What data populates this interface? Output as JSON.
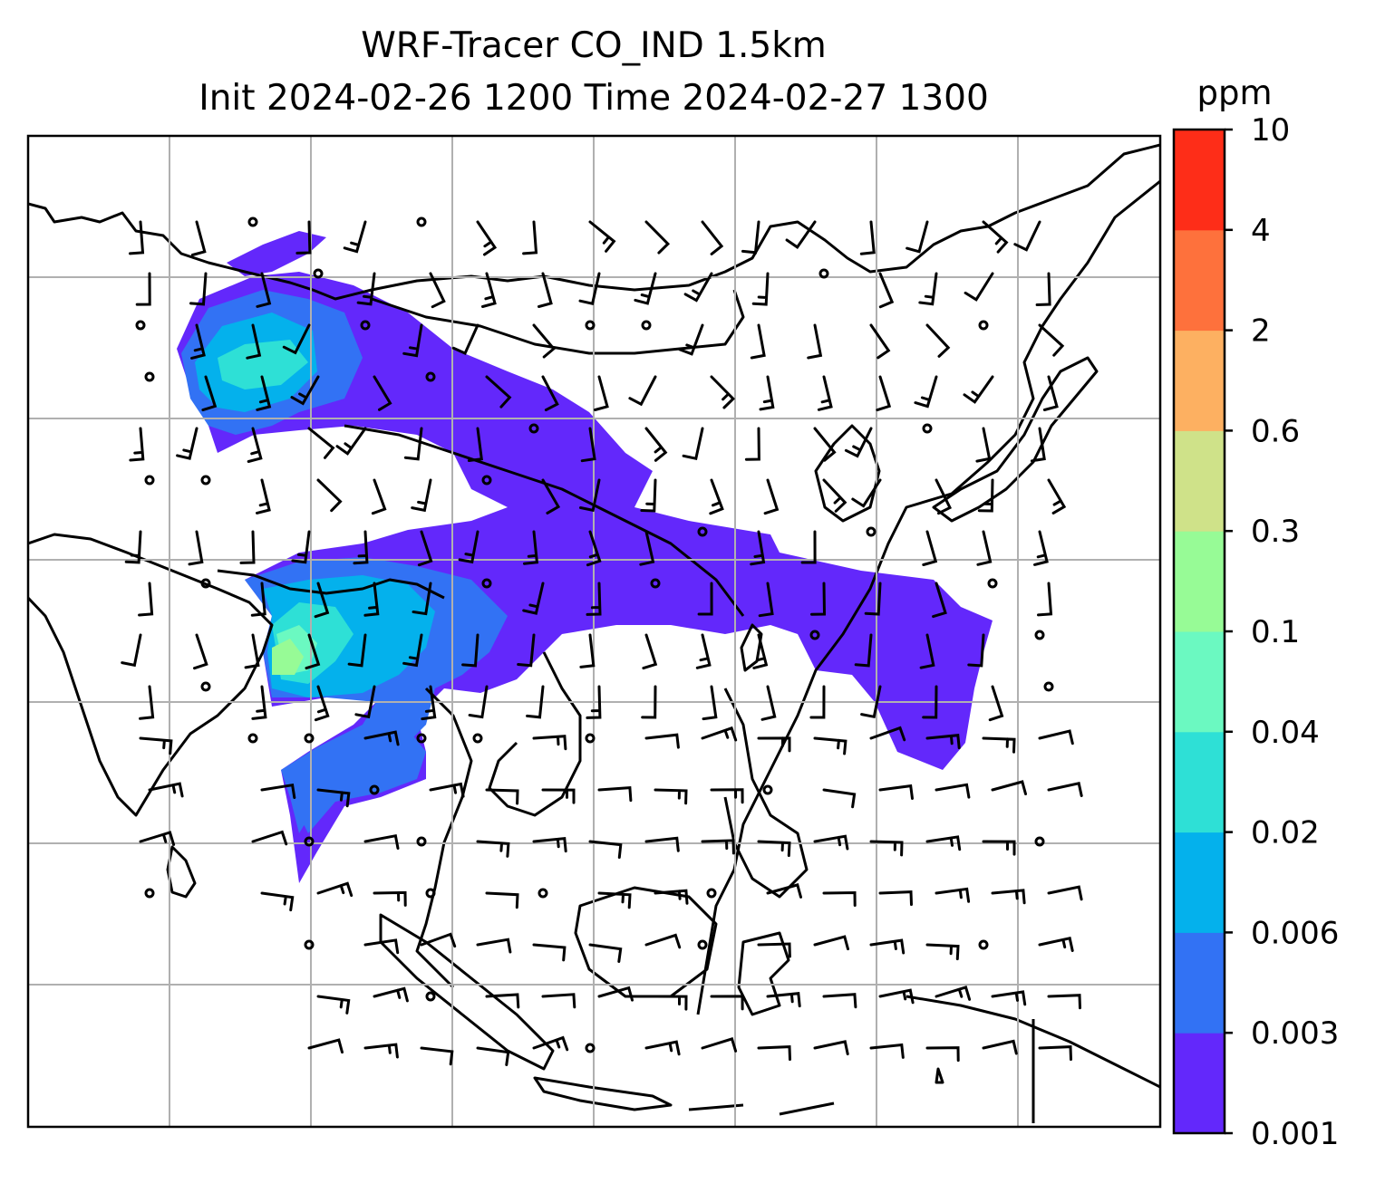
{
  "chart_data": {
    "type": "heatmap",
    "title_line1": "WRF-Tracer CO_IND 1.5km",
    "title_line2": "Init 2024-02-26 1200 Time 2024-02-27 1300",
    "grid": true,
    "colorbar": {
      "unit": "ppm",
      "placement": "right",
      "levels": [
        "0.001",
        "0.003",
        "0.006",
        "0.02",
        "0.04",
        "0.1",
        "0.3",
        "0.6",
        "2",
        "4",
        "10"
      ],
      "colors": [
        "#6328fb",
        "#3272f4",
        "#04b1ec",
        "#2ee0d6",
        "#6bf9c1",
        "#97fb96",
        "#cfe289",
        "#fdb061",
        "#fe713c",
        "#fe2d18"
      ]
    },
    "overlay": "wind barbs, coastlines and country borders"
  },
  "colors": {
    "frame": "#000000",
    "grid": "#b0b0b0",
    "coast": "#000000",
    "barb": "#000000"
  }
}
